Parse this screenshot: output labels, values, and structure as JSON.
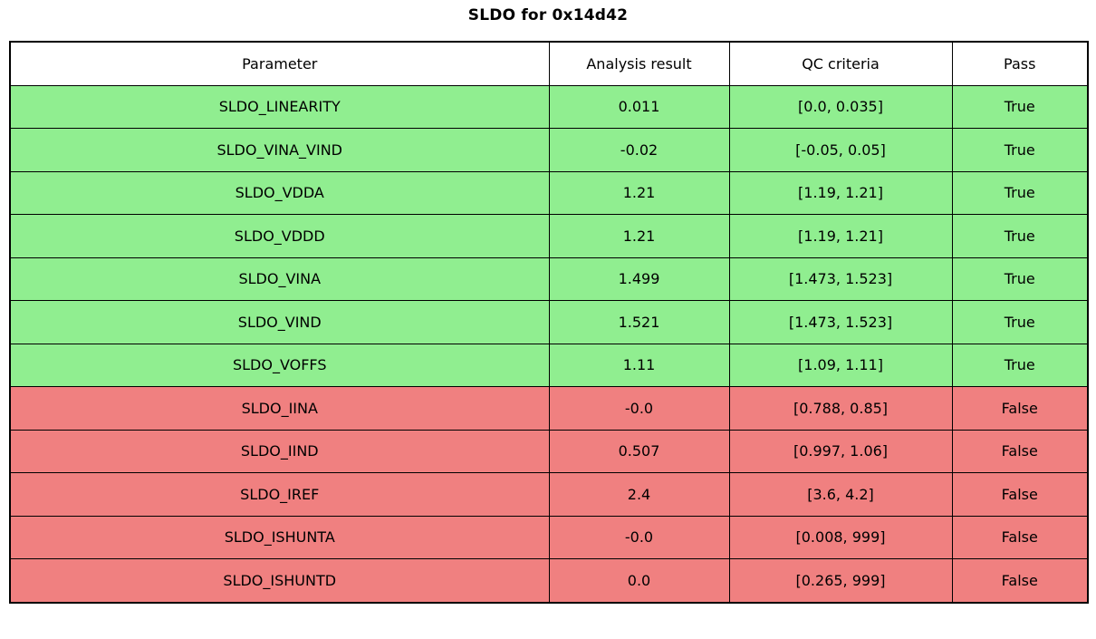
{
  "title": "SLDO for 0x14d42",
  "colors": {
    "pass_row": "#90ee90",
    "fail_row": "#f08080",
    "border": "#000000",
    "header_bg": "#ffffff",
    "text": "#000000"
  },
  "table": {
    "columns": [
      "Parameter",
      "Analysis result",
      "QC criteria",
      "Pass"
    ],
    "rows": [
      {
        "parameter": "SLDO_LINEARITY",
        "result": "0.011",
        "criteria": "[0.0, 0.035]",
        "pass": "True"
      },
      {
        "parameter": "SLDO_VINA_VIND",
        "result": "-0.02",
        "criteria": "[-0.05, 0.05]",
        "pass": "True"
      },
      {
        "parameter": "SLDO_VDDA",
        "result": "1.21",
        "criteria": "[1.19, 1.21]",
        "pass": "True"
      },
      {
        "parameter": "SLDO_VDDD",
        "result": "1.21",
        "criteria": "[1.19, 1.21]",
        "pass": "True"
      },
      {
        "parameter": "SLDO_VINA",
        "result": "1.499",
        "criteria": "[1.473, 1.523]",
        "pass": "True"
      },
      {
        "parameter": "SLDO_VIND",
        "result": "1.521",
        "criteria": "[1.473, 1.523]",
        "pass": "True"
      },
      {
        "parameter": "SLDO_VOFFS",
        "result": "1.11",
        "criteria": "[1.09, 1.11]",
        "pass": "True"
      },
      {
        "parameter": "SLDO_IINA",
        "result": "-0.0",
        "criteria": "[0.788, 0.85]",
        "pass": "False"
      },
      {
        "parameter": "SLDO_IIND",
        "result": "0.507",
        "criteria": "[0.997, 1.06]",
        "pass": "False"
      },
      {
        "parameter": "SLDO_IREF",
        "result": "2.4",
        "criteria": "[3.6, 4.2]",
        "pass": "False"
      },
      {
        "parameter": "SLDO_ISHUNTA",
        "result": "-0.0",
        "criteria": "[0.008, 999]",
        "pass": "False"
      },
      {
        "parameter": "SLDO_ISHUNTD",
        "result": "0.0",
        "criteria": "[0.265, 999]",
        "pass": "False"
      }
    ]
  },
  "chart_data": {
    "type": "table",
    "title": "SLDO for 0x14d42",
    "columns": [
      "Parameter",
      "Analysis result",
      "QC criteria",
      "Pass"
    ],
    "rows": [
      [
        "SLDO_LINEARITY",
        "0.011",
        "[0.0, 0.035]",
        "True"
      ],
      [
        "SLDO_VINA_VIND",
        "-0.02",
        "[-0.05, 0.05]",
        "True"
      ],
      [
        "SLDO_VDDA",
        "1.21",
        "[1.19, 1.21]",
        "True"
      ],
      [
        "SLDO_VDDD",
        "1.21",
        "[1.19, 1.21]",
        "True"
      ],
      [
        "SLDO_VINA",
        "1.499",
        "[1.473, 1.523]",
        "True"
      ],
      [
        "SLDO_VIND",
        "1.521",
        "[1.473, 1.523]",
        "True"
      ],
      [
        "SLDO_VOFFS",
        "1.11",
        "[1.09, 1.11]",
        "True"
      ],
      [
        "SLDO_IINA",
        "-0.0",
        "[0.788, 0.85]",
        "False"
      ],
      [
        "SLDO_IIND",
        "0.507",
        "[0.997, 1.06]",
        "False"
      ],
      [
        "SLDO_IREF",
        "2.4",
        "[3.6, 4.2]",
        "False"
      ],
      [
        "SLDO_ISHUNTA",
        "-0.0",
        "[0.008, 999]",
        "False"
      ],
      [
        "SLDO_ISHUNTD",
        "0.0",
        "[0.265, 999]",
        "False"
      ]
    ],
    "layout_hints": {
      "row_color_rule": "pass=True rows #90ee90, pass=False rows #f08080",
      "header_background": "#ffffff",
      "grid": true
    }
  }
}
